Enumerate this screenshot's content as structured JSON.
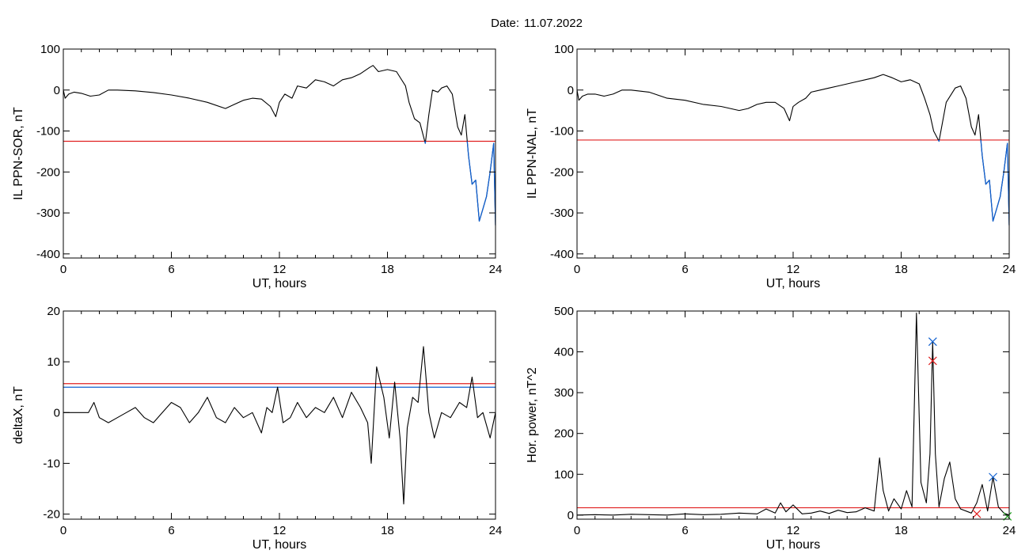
{
  "header": {
    "date_label": "Date:",
    "date_value": "11.07.2022"
  },
  "colors": {
    "trace": "#000000",
    "threshold_red": "#e02020",
    "threshold_blue": "#1060d0",
    "highlight_blue": "#1060d0",
    "marker_green": "#20a020"
  },
  "chart_data": [
    {
      "type": "line",
      "id": "sor",
      "ylabel": "IL PPN-SOR, nT",
      "xlabel": "UT, hours",
      "xlim": [
        0,
        24
      ],
      "ylim": [
        -410,
        100
      ],
      "xticks": [
        0,
        6,
        12,
        18,
        24
      ],
      "yticks": [
        100,
        0,
        -100,
        -200,
        -300,
        -400
      ],
      "threshold": {
        "value": -125,
        "color": "#e02020"
      },
      "highlight": {
        "color": "#1060d0",
        "below": -125
      },
      "series": [
        {
          "x": [
            0,
            0.1,
            0.3,
            0.6,
            1,
            1.5,
            2,
            2.5,
            3,
            4,
            5,
            6,
            7,
            8,
            9,
            9.5,
            10,
            10.5,
            11,
            11.5,
            11.8,
            12,
            12.3,
            12.7,
            13,
            13.5,
            14,
            14.5,
            15,
            15.5,
            16,
            16.5,
            17,
            17.2,
            17.5,
            18,
            18.5,
            19,
            19.2,
            19.5,
            19.8,
            20.1,
            20.3,
            20.5,
            20.8,
            21,
            21.3,
            21.6,
            21.9,
            22.1,
            22.3,
            22.5,
            22.7,
            22.9,
            23.1,
            23.3,
            23.5,
            23.7,
            23.9,
            24
          ],
          "y": [
            0,
            -20,
            -10,
            -5,
            -8,
            -15,
            -12,
            0,
            0,
            -2,
            -6,
            -12,
            -20,
            -30,
            -45,
            -35,
            -25,
            -20,
            -22,
            -40,
            -65,
            -30,
            -10,
            -20,
            10,
            5,
            25,
            20,
            10,
            25,
            30,
            40,
            55,
            60,
            45,
            50,
            45,
            10,
            -30,
            -70,
            -80,
            -130,
            -60,
            0,
            -5,
            5,
            10,
            -10,
            -90,
            -110,
            -60,
            -160,
            -230,
            -220,
            -320,
            -290,
            -260,
            -200,
            -130,
            -330
          ]
        }
      ]
    },
    {
      "type": "line",
      "id": "nal",
      "ylabel": "IL PPN-NAL, nT",
      "xlabel": "UT, hours",
      "xlim": [
        0,
        24
      ],
      "ylim": [
        -410,
        100
      ],
      "xticks": [
        0,
        6,
        12,
        18,
        24
      ],
      "yticks": [
        100,
        0,
        -100,
        -200,
        -300,
        -400
      ],
      "threshold": {
        "value": -122,
        "color": "#e02020"
      },
      "highlight": {
        "color": "#1060d0",
        "below": -122
      },
      "series": [
        {
          "x": [
            0,
            0.1,
            0.3,
            0.6,
            1,
            1.5,
            2,
            2.5,
            3,
            4,
            5,
            6,
            7,
            8,
            9,
            9.5,
            10,
            10.5,
            11,
            11.5,
            11.8,
            12,
            12.3,
            12.7,
            13,
            13.5,
            14,
            14.5,
            15,
            15.5,
            16,
            16.5,
            17,
            17.5,
            18,
            18.5,
            19,
            19.3,
            19.6,
            19.8,
            20.1,
            20.5,
            21,
            21.3,
            21.6,
            21.9,
            22.1,
            22.3,
            22.5,
            22.7,
            22.9,
            23.1,
            23.3,
            23.5,
            23.7,
            23.9,
            24
          ],
          "y": [
            0,
            -25,
            -15,
            -10,
            -10,
            -15,
            -10,
            0,
            0,
            -5,
            -20,
            -25,
            -35,
            -40,
            -50,
            -45,
            -35,
            -30,
            -30,
            -45,
            -75,
            -40,
            -30,
            -20,
            -5,
            0,
            5,
            10,
            15,
            20,
            25,
            30,
            38,
            30,
            20,
            25,
            15,
            -20,
            -60,
            -100,
            -125,
            -30,
            5,
            10,
            -20,
            -90,
            -110,
            -60,
            -160,
            -230,
            -220,
            -320,
            -290,
            -260,
            -200,
            -130,
            -330
          ]
        }
      ]
    },
    {
      "type": "line",
      "id": "deltax",
      "ylabel": "deltaX, nT",
      "xlabel": "UT, hours",
      "xlim": [
        0,
        24
      ],
      "ylim": [
        -21,
        20
      ],
      "xticks": [
        0,
        6,
        12,
        18,
        24
      ],
      "yticks": [
        20,
        10,
        0,
        -10,
        -20
      ],
      "thresholds": [
        {
          "value": 5.7,
          "color": "#e02020"
        },
        {
          "value": 5,
          "color": "#1060d0"
        }
      ],
      "series": [
        {
          "x": [
            0,
            0.5,
            1,
            1.4,
            1.7,
            2,
            2.5,
            3,
            3.5,
            4,
            4.5,
            5,
            5.5,
            6,
            6.5,
            7,
            7.5,
            8,
            8.5,
            9,
            9.5,
            10,
            10.5,
            11,
            11.3,
            11.6,
            11.9,
            12.2,
            12.6,
            13,
            13.5,
            14,
            14.5,
            15,
            15.5,
            16,
            16.5,
            16.9,
            17.1,
            17.4,
            17.8,
            18.1,
            18.4,
            18.7,
            18.9,
            19.1,
            19.4,
            19.7,
            20,
            20.3,
            20.6,
            21,
            21.5,
            22,
            22.4,
            22.7,
            23,
            23.3,
            23.7,
            24
          ],
          "y": [
            0,
            0,
            0,
            0,
            2,
            -1,
            -2,
            -1,
            0,
            1,
            -1,
            -2,
            0,
            2,
            1,
            -2,
            0,
            3,
            -1,
            -2,
            1,
            -1,
            0,
            -4,
            1,
            0,
            5,
            -2,
            -1,
            2,
            -1,
            1,
            0,
            3,
            -1,
            4,
            1,
            -2,
            -10,
            9,
            3,
            -5,
            6,
            -5,
            -18,
            -3,
            3,
            2,
            13,
            0,
            -5,
            0,
            -1,
            2,
            1,
            7,
            -1,
            0,
            -5,
            0
          ]
        }
      ]
    },
    {
      "type": "line",
      "id": "power",
      "ylabel": "Hor. power, nT^2",
      "xlabel": "UT, hours",
      "xlim": [
        0,
        24
      ],
      "ylim": [
        -10,
        500
      ],
      "xticks": [
        0,
        6,
        12,
        18,
        24
      ],
      "yticks": [
        500,
        400,
        300,
        200,
        100,
        0
      ],
      "threshold": {
        "value": 18,
        "color": "#e02020"
      },
      "markers": [
        {
          "x": 19.75,
          "y": 425,
          "symbol": "x",
          "color": "#1060d0"
        },
        {
          "x": 19.75,
          "y": 378,
          "symbol": "x",
          "color": "#e02020"
        },
        {
          "x": 23.1,
          "y": 93,
          "symbol": "x",
          "color": "#1060d0"
        },
        {
          "x": 22.2,
          "y": 3,
          "symbol": "x",
          "color": "#e02020"
        },
        {
          "x": 23.9,
          "y": -3,
          "symbol": "x",
          "color": "#20a020"
        }
      ],
      "series": [
        {
          "x": [
            0,
            1,
            2,
            3,
            4,
            5,
            6,
            7,
            8,
            9,
            10,
            10.5,
            11,
            11.3,
            11.6,
            12,
            12.5,
            13,
            13.5,
            14,
            14.5,
            15,
            15.5,
            16,
            16.5,
            16.8,
            17,
            17.3,
            17.6,
            18,
            18.3,
            18.6,
            18.85,
            19.1,
            19.4,
            19.6,
            19.75,
            19.9,
            20.1,
            20.4,
            20.7,
            21,
            21.3,
            21.6,
            21.9,
            22.2,
            22.5,
            22.8,
            23.1,
            23.4,
            23.7,
            24
          ],
          "y": [
            0,
            1,
            0,
            2,
            1,
            0,
            3,
            1,
            2,
            5,
            3,
            15,
            5,
            30,
            8,
            25,
            3,
            5,
            10,
            4,
            12,
            6,
            8,
            18,
            10,
            140,
            60,
            10,
            40,
            15,
            60,
            20,
            495,
            80,
            30,
            150,
            425,
            150,
            20,
            90,
            130,
            40,
            15,
            10,
            5,
            30,
            75,
            10,
            93,
            20,
            5,
            0
          ]
        }
      ]
    }
  ]
}
